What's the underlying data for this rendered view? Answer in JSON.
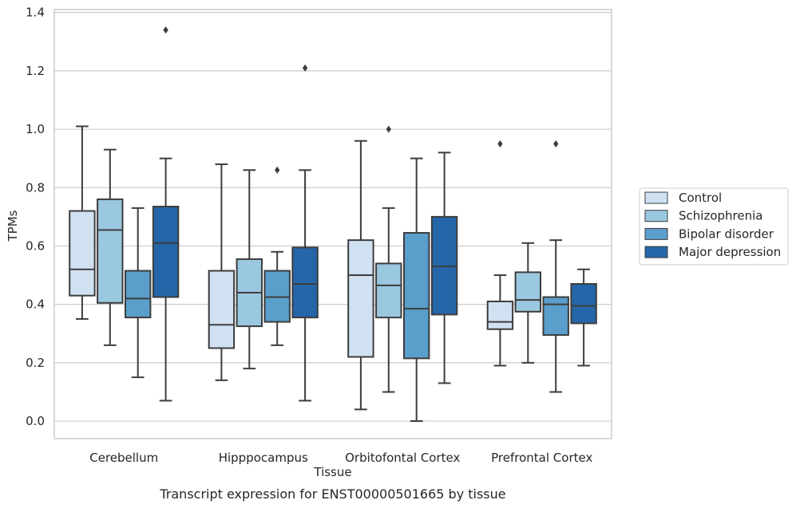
{
  "chart_data": {
    "type": "box",
    "xlabel": "Tissue",
    "ylabel": "TPMs",
    "caption": "Transcript expression for ENST00000501665 by tissue",
    "ylim": [
      -0.06,
      1.41
    ],
    "yticks": [
      "0.0",
      "0.2",
      "0.4",
      "0.6",
      "0.8",
      "1.0",
      "1.2",
      "1.4"
    ],
    "grid": true,
    "legend_position": "right",
    "categories": [
      "Cerebellum",
      "Hipppocampus",
      "Orbitofontal Cortex",
      "Prefrontal Cortex"
    ],
    "series": [
      {
        "name": "Control",
        "color": "#d0e1f2",
        "boxes": [
          {
            "min": 0.35,
            "q1": 0.43,
            "median": 0.52,
            "q3": 0.72,
            "max": 1.01,
            "outliers": []
          },
          {
            "min": 0.14,
            "q1": 0.25,
            "median": 0.33,
            "q3": 0.515,
            "max": 0.88,
            "outliers": []
          },
          {
            "min": 0.04,
            "q1": 0.22,
            "median": 0.5,
            "q3": 0.62,
            "max": 0.96,
            "outliers": []
          },
          {
            "min": 0.19,
            "q1": 0.315,
            "median": 0.34,
            "q3": 0.41,
            "max": 0.5,
            "outliers": [
              0.95
            ]
          }
        ]
      },
      {
        "name": "Schizophrenia",
        "color": "#9ac8e0",
        "boxes": [
          {
            "min": 0.26,
            "q1": 0.405,
            "median": 0.655,
            "q3": 0.76,
            "max": 0.93,
            "outliers": []
          },
          {
            "min": 0.18,
            "q1": 0.325,
            "median": 0.44,
            "q3": 0.555,
            "max": 0.86,
            "outliers": []
          },
          {
            "min": 0.1,
            "q1": 0.355,
            "median": 0.465,
            "q3": 0.54,
            "max": 0.73,
            "outliers": [
              1.0
            ]
          },
          {
            "min": 0.2,
            "q1": 0.375,
            "median": 0.415,
            "q3": 0.51,
            "max": 0.61,
            "outliers": []
          }
        ]
      },
      {
        "name": "Bipolar disorder",
        "color": "#5a9ecb",
        "boxes": [
          {
            "min": 0.15,
            "q1": 0.355,
            "median": 0.42,
            "q3": 0.515,
            "max": 0.73,
            "outliers": []
          },
          {
            "min": 0.26,
            "q1": 0.34,
            "median": 0.425,
            "q3": 0.515,
            "max": 0.58,
            "outliers": [
              0.86
            ]
          },
          {
            "min": 0.0,
            "q1": 0.215,
            "median": 0.385,
            "q3": 0.645,
            "max": 0.9,
            "outliers": []
          },
          {
            "min": 0.1,
            "q1": 0.295,
            "median": 0.4,
            "q3": 0.425,
            "max": 0.62,
            "outliers": [
              0.95
            ]
          }
        ]
      },
      {
        "name": "Major depression",
        "color": "#2566a8",
        "boxes": [
          {
            "min": 0.07,
            "q1": 0.425,
            "median": 0.61,
            "q3": 0.735,
            "max": 0.9,
            "outliers": [
              1.34
            ]
          },
          {
            "min": 0.07,
            "q1": 0.355,
            "median": 0.47,
            "q3": 0.595,
            "max": 0.86,
            "outliers": [
              1.21
            ]
          },
          {
            "min": 0.13,
            "q1": 0.365,
            "median": 0.53,
            "q3": 0.7,
            "max": 0.92,
            "outliers": []
          },
          {
            "min": 0.19,
            "q1": 0.335,
            "median": 0.395,
            "q3": 0.47,
            "max": 0.52,
            "outliers": []
          }
        ]
      }
    ]
  }
}
